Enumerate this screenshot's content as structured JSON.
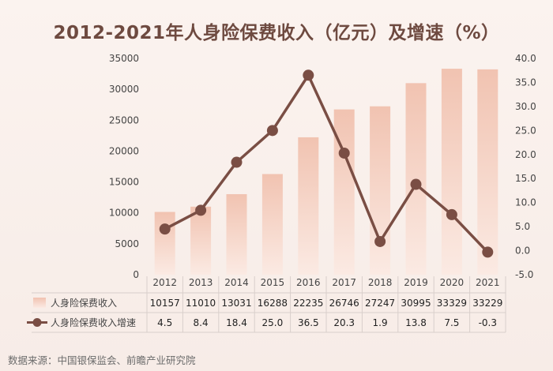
{
  "title": "2012-2021年人身险保费收入（亿元）及增速（%）",
  "source": "数据来源：中国银保监会、前瞻产业研究院",
  "colors": {
    "bar_top": "#f1c3b1",
    "bar_bottom": "#fbeae3",
    "line": "#7a4e44",
    "text": "#444444",
    "title": "#6e4a40"
  },
  "chart_data": {
    "type": "bar",
    "title": "2012-2021年人身险保费收入（亿元）及增速（%）",
    "categories": [
      "2012",
      "2013",
      "2014",
      "2015",
      "2016",
      "2017",
      "2018",
      "2019",
      "2020",
      "2021"
    ],
    "series": [
      {
        "name": "人身险保费收入",
        "type": "bar",
        "axis": "left",
        "values": [
          10157,
          11010,
          13031,
          16288,
          22235,
          26746,
          27247,
          30995,
          33329,
          33229
        ],
        "table_values": [
          "10157",
          "11010",
          "13031",
          "16288",
          "22235",
          "26746",
          "27247",
          "30995",
          "33329",
          "33229"
        ]
      },
      {
        "name": "人身险保费收入增速",
        "type": "line",
        "axis": "right",
        "values": [
          4.5,
          8.4,
          18.4,
          25.0,
          36.5,
          20.3,
          1.9,
          13.8,
          7.5,
          -0.3
        ],
        "table_values": [
          "4.5",
          "8.4",
          "18.4",
          "25.0",
          "36.5",
          "20.3",
          "1.9",
          "13.8",
          "7.5",
          "-0.3"
        ]
      }
    ],
    "y_left": {
      "range": [
        0,
        35000
      ],
      "ticks": [
        "0",
        "5000",
        "10000",
        "15000",
        "20000",
        "25000",
        "30000",
        "35000"
      ]
    },
    "y_right": {
      "range": [
        -5.0,
        40.0
      ],
      "ticks": [
        "-5.0",
        "0.0",
        "5.0",
        "10.0",
        "15.0",
        "20.0",
        "25.0",
        "30.0",
        "35.0",
        "40.0"
      ]
    },
    "grid": false,
    "legend": "data-table-below"
  }
}
